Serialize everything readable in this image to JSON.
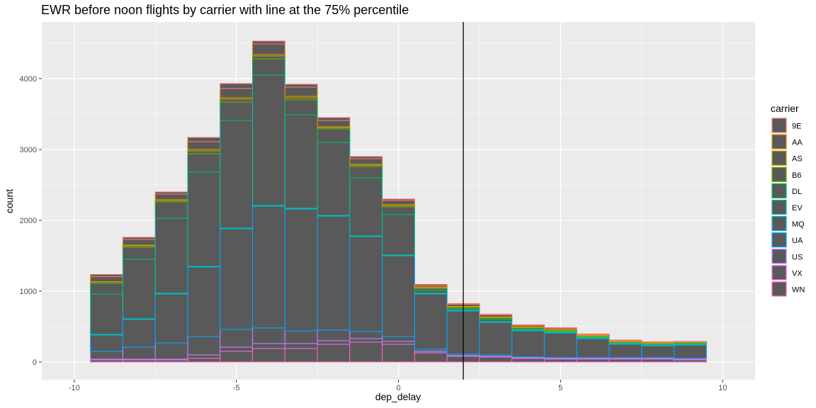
{
  "chart_data": {
    "type": "bar",
    "subtype": "stacked-histogram",
    "title": "EWR before noon flights by carrier with line at the 75% percentile",
    "xlabel": "dep_delay",
    "ylabel": "count",
    "xlim": [
      -11,
      11
    ],
    "ylim": [
      -250,
      4800
    ],
    "x_ticks": [
      -10,
      -5,
      0,
      5,
      10
    ],
    "x_tick_labels": [
      "-10",
      "-5",
      "0",
      "5",
      "10"
    ],
    "y_ticks": [
      0,
      1000,
      2000,
      3000,
      4000
    ],
    "y_tick_labels": [
      "0",
      "1000",
      "2000",
      "3000",
      "4000"
    ],
    "grid": true,
    "reference_line": {
      "x": 2
    },
    "bar_fill": "#595959",
    "bin_width": 1,
    "bins": [
      -9,
      -8,
      -7,
      -6,
      -5,
      -4,
      -3,
      -2,
      -1,
      0,
      1,
      2,
      3,
      4,
      5,
      6,
      7,
      8,
      9
    ],
    "legend": {
      "title": "carrier",
      "position": "right"
    },
    "series": [
      {
        "name": "9E",
        "color": "#F8766D",
        "values": [
          30,
          30,
          30,
          60,
          70,
          40,
          40,
          40,
          30,
          20,
          20,
          10,
          10,
          10,
          10,
          10,
          10,
          5,
          5
        ]
      },
      {
        "name": "AA",
        "color": "#DB8E00",
        "values": [
          70,
          80,
          80,
          110,
          130,
          150,
          130,
          90,
          80,
          60,
          20,
          30,
          30,
          20,
          20,
          10,
          10,
          10,
          5
        ]
      },
      {
        "name": "AS",
        "color": "#AEA200",
        "values": [
          5,
          10,
          10,
          20,
          20,
          20,
          20,
          10,
          10,
          10,
          5,
          5,
          5,
          5,
          5,
          5,
          5,
          5,
          5
        ]
      },
      {
        "name": "B6",
        "color": "#64B200",
        "values": [
          20,
          20,
          20,
          40,
          40,
          40,
          30,
          20,
          20,
          20,
          10,
          10,
          10,
          10,
          10,
          10,
          5,
          5,
          5
        ]
      },
      {
        "name": "DL",
        "color": "#00BD5C",
        "values": [
          150,
          170,
          230,
          260,
          260,
          230,
          210,
          190,
          160,
          110,
          30,
          20,
          20,
          20,
          10,
          10,
          10,
          10,
          10
        ]
      },
      {
        "name": "EV",
        "color": "#00C1A7",
        "values": [
          570,
          840,
          1060,
          1330,
          1520,
          1840,
          1320,
          1030,
          820,
          570,
          40,
          20,
          30,
          10,
          10,
          10,
          10,
          10,
          10
        ]
      },
      {
        "name": "MQ",
        "color": "#00BADE",
        "values": [
          10,
          10,
          10,
          10,
          10,
          10,
          10,
          10,
          10,
          10,
          10,
          10,
          10,
          10,
          10,
          10,
          10,
          10,
          10
        ]
      },
      {
        "name": "UA",
        "color": "#00A6FF",
        "values": [
          230,
          390,
          690,
          980,
          1420,
          1720,
          1720,
          1610,
          1340,
          1140,
          780,
          610,
          460,
          370,
          350,
          270,
          190,
          170,
          190
        ]
      },
      {
        "name": "US",
        "color": "#B385FF",
        "values": [
          110,
          170,
          230,
          260,
          250,
          220,
          180,
          150,
          100,
          70,
          30,
          20,
          20,
          10,
          10,
          10,
          10,
          10,
          10
        ]
      },
      {
        "name": "VX",
        "color": "#EF67EB",
        "values": [
          10,
          10,
          10,
          50,
          60,
          70,
          70,
          50,
          50,
          40,
          20,
          10,
          10,
          10,
          10,
          10,
          10,
          10,
          10
        ]
      },
      {
        "name": "WN",
        "color": "#FF63B6",
        "values": [
          30,
          30,
          30,
          50,
          150,
          190,
          190,
          250,
          280,
          250,
          130,
          80,
          70,
          50,
          40,
          40,
          40,
          40,
          30
        ]
      }
    ]
  }
}
